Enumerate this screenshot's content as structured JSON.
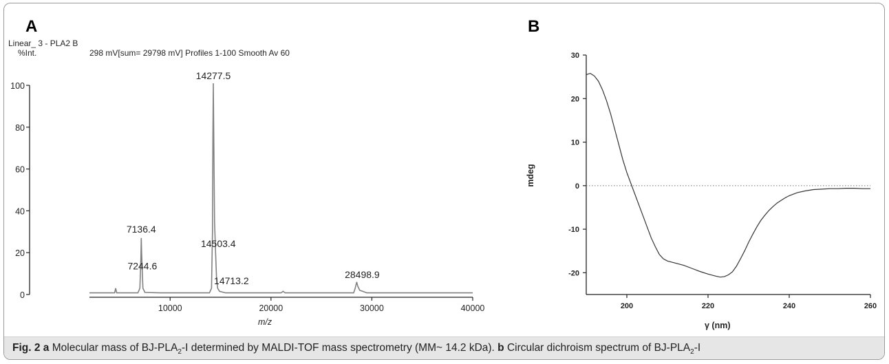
{
  "panel_a_letter": "A",
  "panel_b_letter": "B",
  "ms_header_line1": "Linear_ 3 - PLA2 B",
  "ms_header_line2_left": "%Int.",
  "ms_header_line2_right": "298 mV[sum= 29798 mV]  Profiles 1-100 Smooth Av 60",
  "caption": {
    "fig_label": "Fig. 2",
    "a_label": "a",
    "a_text_before": "Molecular mass of BJ-PLA",
    "a_text_after": "-I determined by MALDI-TOF mass spectrometry (MM~ 14.2 kDa).",
    "b_label": "b",
    "b_text_before": "Circular dichroism spectrum of BJ-PLA",
    "b_text_after": "-I",
    "subscript": "2"
  },
  "chart_data": [
    {
      "type": "line",
      "title": "",
      "xlabel": "m/z",
      "ylabel": "%Int.",
      "xlim": [
        2000,
        40000
      ],
      "ylim": [
        0,
        100
      ],
      "x_ticks": [
        10000,
        20000,
        30000,
        40000
      ],
      "y_ticks": [
        0,
        20,
        40,
        60,
        80,
        100
      ],
      "grid": false,
      "series": [
        {
          "points": [
            [
              2000,
              0.8
            ],
            [
              4500,
              0.8
            ],
            [
              4600,
              3
            ],
            [
              4700,
              0.8
            ],
            [
              6800,
              0.8
            ],
            [
              7000,
              3
            ],
            [
              7100,
              18
            ],
            [
              7136,
              27
            ],
            [
              7170,
              20
            ],
            [
              7244,
              10
            ],
            [
              7300,
              3
            ],
            [
              7500,
              1
            ],
            [
              9000,
              0.8
            ],
            [
              13900,
              0.8
            ],
            [
              14100,
              3
            ],
            [
              14200,
              30
            ],
            [
              14240,
              75
            ],
            [
              14277,
              101
            ],
            [
              14320,
              78
            ],
            [
              14400,
              35
            ],
            [
              14503,
              20
            ],
            [
              14600,
              8
            ],
            [
              14713,
              3
            ],
            [
              14900,
              1.5
            ],
            [
              15500,
              0.8
            ],
            [
              21000,
              0.8
            ],
            [
              21200,
              1.5
            ],
            [
              21400,
              0.8
            ],
            [
              28200,
              0.8
            ],
            [
              28350,
              3
            ],
            [
              28499,
              6
            ],
            [
              28600,
              4
            ],
            [
              28800,
              2
            ],
            [
              29100,
              1.5
            ],
            [
              29500,
              0.8
            ],
            [
              40000,
              0.8
            ]
          ]
        }
      ],
      "peak_labels": [
        {
          "x": 14277.5,
          "y": 101,
          "text": "14277.5"
        },
        {
          "x": 7136.4,
          "y": 27,
          "text": "7136.4"
        },
        {
          "x": 14503.4,
          "y": 20,
          "text": "14503.4"
        },
        {
          "x": 7244.6,
          "y": 10,
          "text": "7244.6"
        },
        {
          "x": 14713.2,
          "y": 3,
          "text": "14713.2"
        },
        {
          "x": 28498.9,
          "y": 6,
          "text": "28498.9"
        }
      ]
    },
    {
      "type": "line",
      "title": "",
      "xlabel": "γ (nm)",
      "ylabel": "mdeg",
      "xlim": [
        190,
        260
      ],
      "ylim": [
        -25,
        30
      ],
      "x_ticks": [
        200,
        220,
        240,
        260
      ],
      "y_ticks": [
        -20,
        -10,
        0,
        10,
        20,
        30
      ],
      "grid": false,
      "zero_line": "dotted",
      "series": [
        {
          "points": [
            [
              190,
              25.5
            ],
            [
              191,
              25.8
            ],
            [
              192,
              25.2
            ],
            [
              193,
              24
            ],
            [
              194,
              22
            ],
            [
              195,
              19.5
            ],
            [
              196,
              16.5
            ],
            [
              197,
              13
            ],
            [
              198,
              9.5
            ],
            [
              199,
              6
            ],
            [
              200,
              3
            ],
            [
              201,
              0.5
            ],
            [
              202,
              -2
            ],
            [
              203,
              -4.5
            ],
            [
              204,
              -7
            ],
            [
              205,
              -9.5
            ],
            [
              206,
              -12
            ],
            [
              207,
              -14
            ],
            [
              208,
              -15.8
            ],
            [
              209,
              -16.8
            ],
            [
              210,
              -17.3
            ],
            [
              212,
              -17.8
            ],
            [
              214,
              -18.3
            ],
            [
              216,
              -19
            ],
            [
              218,
              -19.7
            ],
            [
              220,
              -20.3
            ],
            [
              222,
              -20.8
            ],
            [
              223,
              -21
            ],
            [
              224,
              -20.9
            ],
            [
              225,
              -20.5
            ],
            [
              226,
              -19.8
            ],
            [
              227,
              -18.5
            ],
            [
              228,
              -16.8
            ],
            [
              229,
              -15
            ],
            [
              230,
              -13
            ],
            [
              231,
              -11.2
            ],
            [
              232,
              -9.5
            ],
            [
              233,
              -8
            ],
            [
              234,
              -6.8
            ],
            [
              235,
              -5.7
            ],
            [
              236,
              -4.8
            ],
            [
              237,
              -4
            ],
            [
              238,
              -3.4
            ],
            [
              239,
              -2.8
            ],
            [
              240,
              -2.3
            ],
            [
              242,
              -1.6
            ],
            [
              244,
              -1.2
            ],
            [
              246,
              -0.9
            ],
            [
              248,
              -0.8
            ],
            [
              250,
              -0.7
            ],
            [
              252,
              -0.7
            ],
            [
              254,
              -0.6
            ],
            [
              256,
              -0.6
            ],
            [
              258,
              -0.7
            ],
            [
              260,
              -0.7
            ]
          ]
        }
      ]
    }
  ]
}
